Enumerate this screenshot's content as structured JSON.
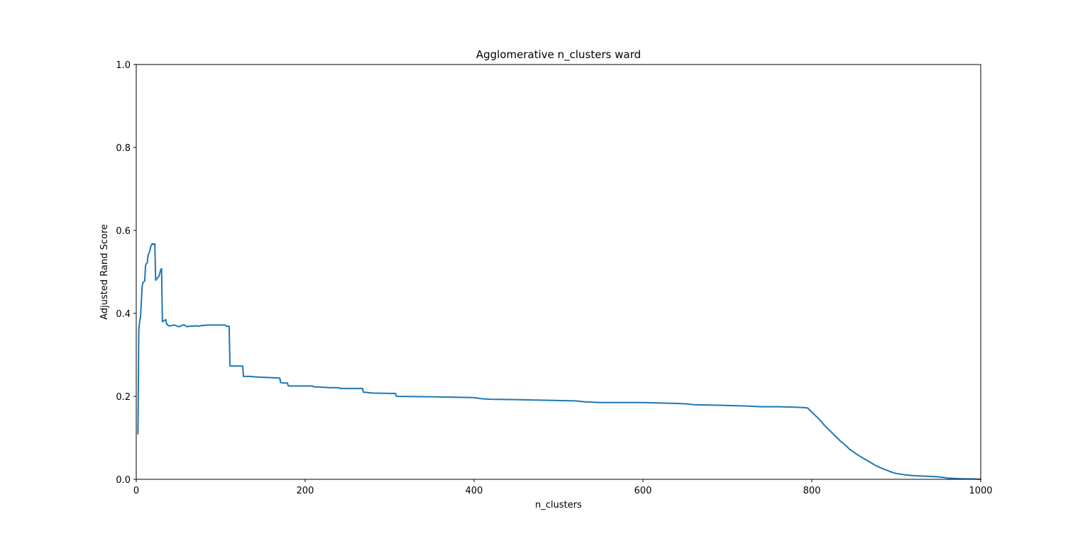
{
  "chart_data": {
    "type": "line",
    "title": "Agglomerative n_clusters ward",
    "xlabel": "n_clusters",
    "ylabel": "Adjusted Rand Score",
    "xlim": [
      0,
      1000
    ],
    "ylim": [
      0.0,
      1.0
    ],
    "xticks": [
      "0",
      "200",
      "400",
      "600",
      "800",
      "1000"
    ],
    "yticks": [
      "0.0",
      "0.2",
      "0.4",
      "0.6",
      "0.8",
      "1.0"
    ],
    "grid": false,
    "legend": "none",
    "line_color": "#1f77b4",
    "series": [
      {
        "x": [
          2,
          3,
          4,
          5,
          7,
          8,
          10,
          11,
          12,
          13,
          14,
          15,
          16,
          17,
          18,
          19,
          20,
          21,
          22,
          23,
          25,
          27,
          29,
          30,
          31,
          35,
          36,
          37,
          38,
          40,
          45,
          50,
          52,
          55,
          57,
          60,
          63,
          65,
          70,
          75,
          77,
          80,
          85,
          90,
          95,
          100,
          105,
          107,
          110,
          111,
          120,
          126,
          127,
          130,
          135,
          140,
          150,
          160,
          170,
          171,
          175,
          179,
          180,
          200,
          209,
          210,
          220,
          230,
          240,
          241,
          260,
          268,
          269,
          275,
          280,
          300,
          307,
          308,
          350,
          400,
          410,
          420,
          450,
          500,
          520,
          530,
          550,
          600,
          620,
          640,
          650,
          660,
          700,
          720,
          740,
          760,
          780,
          790,
          795,
          800,
          805,
          810,
          815,
          820,
          825,
          830,
          835,
          840,
          845,
          850,
          855,
          860,
          865,
          870,
          875,
          880,
          885,
          890,
          895,
          900,
          910,
          920,
          930,
          940,
          950,
          958,
          960,
          970,
          980,
          990,
          1000
        ],
        "y": [
          0.11,
          0.36,
          0.38,
          0.39,
          0.465,
          0.475,
          0.478,
          0.515,
          0.52,
          0.522,
          0.54,
          0.545,
          0.55,
          0.56,
          0.565,
          0.568,
          0.566,
          0.567,
          0.568,
          0.48,
          0.485,
          0.49,
          0.505,
          0.508,
          0.38,
          0.385,
          0.374,
          0.373,
          0.37,
          0.37,
          0.372,
          0.368,
          0.369,
          0.372,
          0.372,
          0.368,
          0.369,
          0.369,
          0.37,
          0.369,
          0.371,
          0.371,
          0.372,
          0.372,
          0.372,
          0.372,
          0.372,
          0.369,
          0.369,
          0.273,
          0.273,
          0.273,
          0.248,
          0.248,
          0.248,
          0.247,
          0.246,
          0.245,
          0.244,
          0.233,
          0.232,
          0.232,
          0.225,
          0.225,
          0.225,
          0.223,
          0.222,
          0.221,
          0.221,
          0.219,
          0.219,
          0.219,
          0.21,
          0.209,
          0.208,
          0.207,
          0.207,
          0.2,
          0.199,
          0.197,
          0.194,
          0.193,
          0.192,
          0.19,
          0.189,
          0.187,
          0.185,
          0.185,
          0.184,
          0.183,
          0.182,
          0.18,
          0.178,
          0.177,
          0.175,
          0.175,
          0.174,
          0.173,
          0.172,
          0.162,
          0.152,
          0.142,
          0.13,
          0.12,
          0.11,
          0.1,
          0.09,
          0.082,
          0.072,
          0.065,
          0.058,
          0.052,
          0.046,
          0.04,
          0.034,
          0.029,
          0.025,
          0.021,
          0.017,
          0.014,
          0.011,
          0.009,
          0.008,
          0.007,
          0.006,
          0.004,
          0.003,
          0.002,
          0.001,
          0.001,
          0.0
        ]
      }
    ]
  }
}
